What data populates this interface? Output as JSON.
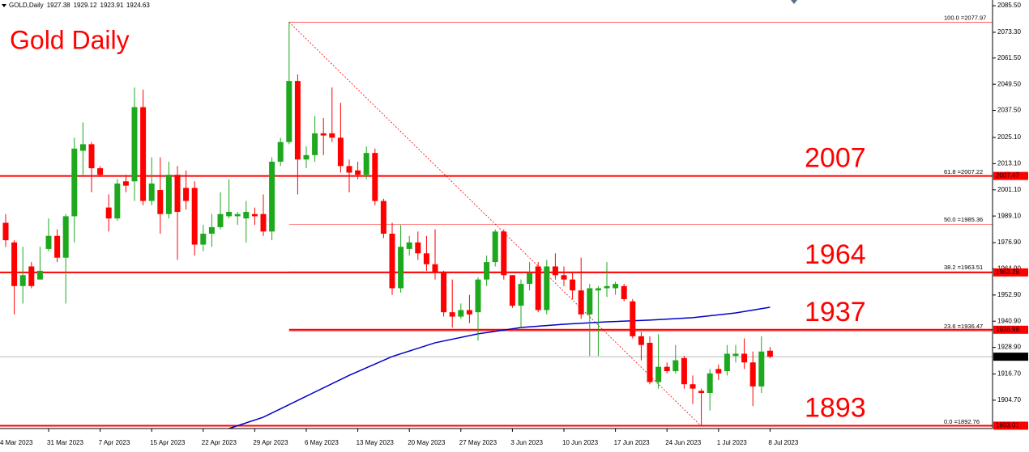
{
  "chart_data": {
    "type": "candlestick",
    "title": "Gold Daily",
    "symbol": "GOLD,Daily",
    "x_edge_label": "4 Mar 2023",
    "categories": [
      null,
      null,
      null,
      null,
      null,
      "31 Mar 2023",
      null,
      null,
      null,
      null,
      null,
      "7 Apr 2023",
      null,
      null,
      null,
      null,
      null,
      "15 Apr 2023",
      null,
      null,
      null,
      null,
      null,
      "22 Apr 2023",
      null,
      null,
      null,
      null,
      null,
      "29 Apr 2023",
      null,
      null,
      null,
      null,
      null,
      "6 May 2023",
      null,
      null,
      null,
      null,
      null,
      "13 May 2023",
      null,
      null,
      null,
      null,
      null,
      "20 May 2023",
      null,
      null,
      null,
      null,
      null,
      "27 May 2023",
      null,
      null,
      null,
      null,
      null,
      "3 Jun 2023",
      null,
      null,
      null,
      null,
      null,
      "10 Jun 2023",
      null,
      null,
      null,
      null,
      null,
      "17 Jun 2023",
      null,
      null,
      null,
      null,
      null,
      "24 Jun 2023",
      null,
      null,
      null,
      null,
      null,
      "1 Jul 2023",
      null,
      null,
      null,
      null,
      null,
      "8 Jul 2023"
    ],
    "open": [
      1986,
      1977,
      1957,
      1966,
      1960,
      1974,
      1980,
      1970,
      1989,
      2019,
      2022,
      2011,
      1993,
      1988,
      2005,
      2005,
      2039,
      1996,
      2001,
      1990,
      2008,
      2002,
      2002,
      1976,
      1981,
      1984,
      1989,
      1989,
      1988,
      1990,
      1990,
      1982,
      2014,
      2023,
      2051,
      2015,
      2017,
      2027,
      2027,
      2025,
      2012,
      2010,
      2008,
      2018,
      1996,
      1981,
      1956,
      1974,
      1977,
      1972,
      1967,
      1963,
      1945,
      1943,
      1946,
      1945,
      1960,
      1968,
      1982,
      1962,
      1948,
      1958,
      1966,
      1946,
      1966,
      1962,
      1960,
      1955,
      1944,
      1955,
      1956,
      1956,
      1957,
      1950,
      1934,
      1931,
      1913,
      1920,
      1918,
      1924,
      1912,
      1909,
      1908,
      1919,
      1918,
      1925,
      1926,
      1922,
      1911,
      1927.38
    ],
    "high": [
      1990,
      1978,
      1975,
      1968,
      1975,
      1988,
      1983,
      1990,
      2025,
      2032,
      2023,
      2012,
      1999,
      2006,
      2008,
      2048,
      2047,
      2016,
      2016,
      2014,
      2012,
      2010,
      2005,
      1985,
      1990,
      2000,
      2006,
      1991,
      1996,
      1993,
      1999,
      2016,
      2025,
      2077.97,
      2054,
      2021,
      2035,
      2034,
      2048,
      2041,
      2015,
      2014,
      2021,
      2020,
      1997,
      1986,
      1985,
      1980,
      1982,
      1980,
      1983,
      1964,
      1960,
      1949,
      1953,
      1961,
      1971,
      1983,
      1983,
      1962,
      1960,
      1968,
      1968,
      1969,
      1972,
      1966,
      1963,
      1970,
      1958,
      1957,
      1968,
      1959,
      1958,
      1951,
      1936,
      1934,
      1935,
      1922,
      1930,
      1925,
      1916,
      1910,
      1919,
      1921,
      1930,
      1930,
      1933,
      1927,
      1934,
      1929.12
    ],
    "low": [
      1975,
      1944,
      1949,
      1956,
      1960,
      1973,
      1968,
      1949,
      1977,
      2008,
      2000,
      2007,
      1982,
      1987,
      2000,
      1996,
      1994,
      1994,
      1981,
      1988,
      1969,
      1992,
      1971,
      1973,
      1975,
      1983,
      1988,
      1985,
      1977,
      1985,
      1980,
      1978,
      2012,
      2022,
      1999,
      2011,
      2014,
      2017,
      2023,
      2009,
      2000,
      2006,
      2006,
      1994,
      1979,
      1953,
      1954,
      1971,
      1969,
      1964,
      1960,
      1943,
      1938,
      1942,
      1940,
      1932,
      1957,
      1966,
      1960,
      1947,
      1938,
      1955,
      1945,
      1944,
      1960,
      1957,
      1951,
      1942,
      1925,
      1925,
      1952,
      1953,
      1950,
      1933,
      1923,
      1912,
      1910,
      1917,
      1917,
      1910,
      1903,
      1892.76,
      1900,
      1914,
      1916,
      1922,
      1919,
      1902,
      1908,
      1923.91
    ],
    "close": [
      1978,
      1957,
      1962,
      1957,
      1964,
      1980,
      1970,
      1989,
      2020,
      2022,
      2011,
      2008,
      1988,
      2004,
      2003,
      2039,
      1996,
      2004,
      1990,
      2008,
      1991,
      1996,
      1976,
      1981,
      1984,
      1990,
      1991,
      1990,
      1991,
      1989,
      1982,
      2014,
      2023,
      2051,
      2015,
      2017,
      2027,
      2026,
      2025,
      2012,
      2009,
      2008,
      2018,
      1996,
      1981,
      1956,
      1975,
      1977,
      1972,
      1967,
      1963,
      1945,
      1943,
      1946,
      1944,
      1960,
      1968,
      1982,
      1962,
      1948,
      1958,
      1963,
      1946,
      1966,
      1962,
      1960,
      1955,
      1944,
      1956,
      1956,
      1957,
      1958,
      1951,
      1934,
      1930,
      1913,
      1920,
      1918,
      1923,
      1912,
      1910,
      1908,
      1917,
      1917,
      1926,
      1926,
      1922,
      1911,
      1927,
      1924.63
    ],
    "up_color": "#1ea81e",
    "down_color": "#ff0000",
    "ylim": [
      1891.7,
      2088.1
    ],
    "yticks": [
      {
        "value": 2085.5,
        "label": "2085.50"
      },
      {
        "value": 2073.3,
        "label": "2073.30"
      },
      {
        "value": 2061.5,
        "label": "2061.50"
      },
      {
        "value": 2049.5,
        "label": "2049.50"
      },
      {
        "value": 2037.5,
        "label": "2037.50"
      },
      {
        "value": 2025.1,
        "label": "2025.10"
      },
      {
        "value": 2013.1,
        "label": "2013.10"
      },
      {
        "value": 2001.1,
        "label": "2001.10"
      },
      {
        "value": 1989.1,
        "label": "1989.10"
      },
      {
        "value": 1976.9,
        "label": "1976.90"
      },
      {
        "value": 1964.9,
        "label": "1964.90"
      },
      {
        "value": 1952.9,
        "label": "1952.90"
      },
      {
        "value": 1940.9,
        "label": "1940.90"
      },
      {
        "value": 1928.9,
        "label": "1928.90"
      },
      {
        "value": 1916.7,
        "label": "1916.70"
      },
      {
        "value": 1904.7,
        "label": "1904.70"
      }
    ],
    "moving_average": {
      "color": "#0000c8",
      "x": [
        26,
        30,
        35,
        40,
        45,
        50,
        55,
        60,
        65,
        70,
        75,
        80,
        85,
        89
      ],
      "values": [
        1891.7,
        1896.9,
        1906.5,
        1916.1,
        1924.7,
        1931.0,
        1935.1,
        1938.0,
        1939.5,
        1940.6,
        1941.4,
        1942.5,
        1944.7,
        1947.3
      ]
    },
    "levels": [
      {
        "name": "2007",
        "value": 2007.47
      },
      {
        "name": "1964",
        "value": 1963.26
      },
      {
        "name": "1937",
        "value": 1936.98,
        "start": 33
      },
      {
        "name": "1893",
        "value": 1893.01
      }
    ],
    "fibonacci": {
      "from": 33,
      "to": 81,
      "levels": [
        {
          "label": "100.0 =2077.97",
          "value": 2077.97
        },
        {
          "label": "61.8 =2007.22",
          "value": 2007.22
        },
        {
          "label": "50.0 =1985.36",
          "value": 1985.36
        },
        {
          "label": "38.2 =1963.51",
          "value": 1963.51
        },
        {
          "label": "23.6 =1936.47",
          "value": 1936.47
        },
        {
          "label": "0.0 =1892.76",
          "value": 1892.76
        }
      ]
    }
  }
}
